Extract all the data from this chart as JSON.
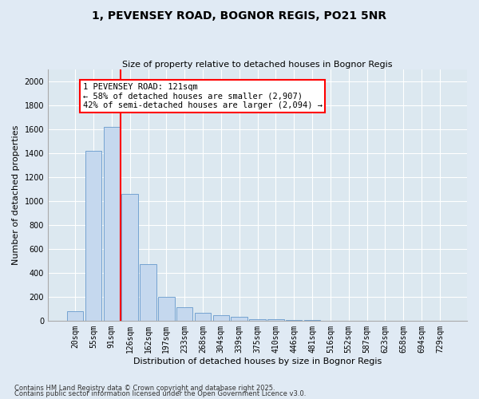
{
  "title1": "1, PEVENSEY ROAD, BOGNOR REGIS, PO21 5NR",
  "title2": "Size of property relative to detached houses in Bognor Regis",
  "xlabel": "Distribution of detached houses by size in Bognor Regis",
  "ylabel": "Number of detached properties",
  "bar_labels": [
    "20sqm",
    "55sqm",
    "91sqm",
    "126sqm",
    "162sqm",
    "197sqm",
    "233sqm",
    "268sqm",
    "304sqm",
    "339sqm",
    "375sqm",
    "410sqm",
    "446sqm",
    "481sqm",
    "516sqm",
    "552sqm",
    "587sqm",
    "623sqm",
    "658sqm",
    "694sqm",
    "729sqm"
  ],
  "bar_values": [
    80,
    1420,
    1620,
    1060,
    470,
    200,
    110,
    65,
    45,
    30,
    15,
    10,
    5,
    3,
    2,
    1,
    1,
    0,
    0,
    0,
    0
  ],
  "bar_color": "#c5d8ee",
  "bar_edge_color": "#6699cc",
  "vline_color": "red",
  "vline_pos": 2.5,
  "annotation_text": "1 PEVENSEY ROAD: 121sqm\n← 58% of detached houses are smaller (2,907)\n42% of semi-detached houses are larger (2,094) →",
  "annotation_box_edgecolor": "red",
  "annotation_box_facecolor": "white",
  "ylim_max": 2100,
  "yticks": [
    0,
    200,
    400,
    600,
    800,
    1000,
    1200,
    1400,
    1600,
    1800,
    2000
  ],
  "footnote1": "Contains HM Land Registry data © Crown copyright and database right 2025.",
  "footnote2": "Contains public sector information licensed under the Open Government Licence v3.0.",
  "bg_color": "#e0eaf4",
  "plot_bg_color": "#dce8f0",
  "grid_color": "#ffffff",
  "title1_fontsize": 10,
  "title2_fontsize": 8,
  "ylabel_fontsize": 8,
  "xlabel_fontsize": 8,
  "tick_fontsize": 7,
  "annot_fontsize": 7.5,
  "footnote_fontsize": 6
}
